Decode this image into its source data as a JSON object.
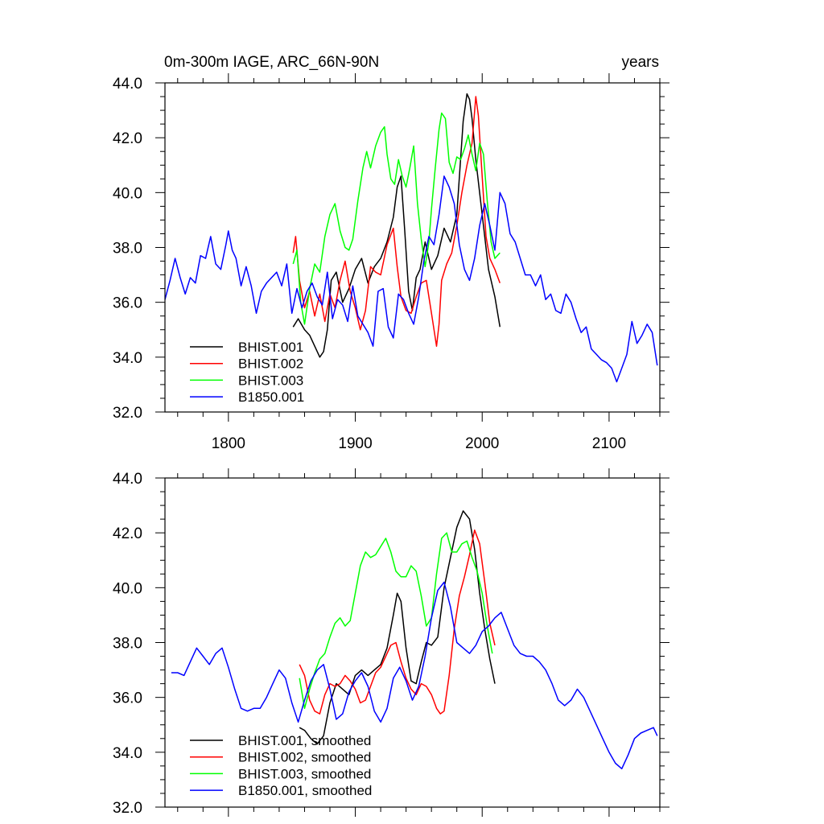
{
  "figure": {
    "title_left": "0m-300m IAGE, ARC_66N-90N",
    "title_right": "years"
  },
  "chart_data": [
    {
      "type": "line",
      "panel": "raw",
      "xlim": [
        1750,
        2140
      ],
      "ylim": [
        32.0,
        44.0
      ],
      "xticks": [
        1800,
        1900,
        2000,
        2100
      ],
      "xticklabels": [
        "1800",
        "1900",
        "2000",
        "2100"
      ],
      "yticks": [
        32,
        34,
        36,
        38,
        40,
        42,
        44
      ],
      "yticklabels": [
        "32.0",
        "34.0",
        "36.0",
        "38.0",
        "40.0",
        "42.0",
        "44.0"
      ],
      "grid": false,
      "legend_position": "bottom-left",
      "series": [
        {
          "name": "BHIST.001",
          "color": "#000000",
          "x": [
            1851,
            1855,
            1860,
            1864,
            1868,
            1872,
            1875,
            1878,
            1881,
            1885,
            1890,
            1895,
            1900,
            1905,
            1910,
            1915,
            1920,
            1925,
            1930,
            1933,
            1936,
            1939,
            1942,
            1945,
            1948,
            1951,
            1955,
            1960,
            1965,
            1970,
            1975,
            1980,
            1985,
            1988,
            1990,
            1992,
            1995,
            2000,
            2005,
            2010,
            2014
          ],
          "y": [
            35.1,
            35.4,
            35.0,
            34.8,
            34.4,
            34.0,
            34.2,
            35.0,
            36.8,
            37.1,
            36.0,
            36.5,
            37.2,
            37.6,
            36.7,
            37.3,
            37.6,
            38.2,
            39.1,
            40.2,
            40.6,
            38.6,
            36.4,
            35.7,
            36.9,
            37.2,
            38.2,
            37.2,
            37.7,
            38.7,
            38.2,
            39.2,
            42.6,
            43.6,
            43.4,
            42.7,
            41.2,
            39.2,
            37.2,
            36.2,
            35.1
          ]
        },
        {
          "name": "BHIST.002",
          "color": "#ff0000",
          "x": [
            1851,
            1853,
            1856,
            1860,
            1864,
            1868,
            1872,
            1876,
            1880,
            1884,
            1888,
            1892,
            1896,
            1900,
            1904,
            1908,
            1912,
            1916,
            1920,
            1925,
            1930,
            1933,
            1936,
            1940,
            1944,
            1948,
            1952,
            1956,
            1960,
            1964,
            1966,
            1968,
            1972,
            1976,
            1980,
            1984,
            1988,
            1992,
            1995,
            1997,
            2000,
            2003,
            2006,
            2010,
            2014
          ],
          "y": [
            37.8,
            38.4,
            36.8,
            35.8,
            36.4,
            35.5,
            36.3,
            35.3,
            36.3,
            35.8,
            36.8,
            37.5,
            36.4,
            35.8,
            35.0,
            35.7,
            37.3,
            37.1,
            37.0,
            38.1,
            38.7,
            37.3,
            36.2,
            35.7,
            35.6,
            36.2,
            36.7,
            36.8,
            35.6,
            34.4,
            35.2,
            36.8,
            37.4,
            37.8,
            38.8,
            40.0,
            41.0,
            41.8,
            43.5,
            42.8,
            40.6,
            38.4,
            37.6,
            37.2,
            36.7
          ]
        },
        {
          "name": "BHIST.003",
          "color": "#00ff00",
          "x": [
            1851,
            1854,
            1857,
            1860,
            1864,
            1868,
            1872,
            1876,
            1880,
            1884,
            1888,
            1892,
            1895,
            1898,
            1902,
            1906,
            1909,
            1912,
            1916,
            1920,
            1923,
            1925,
            1928,
            1931,
            1934,
            1937,
            1940,
            1943,
            1946,
            1949,
            1952,
            1955,
            1958,
            1960,
            1963,
            1966,
            1968,
            1971,
            1974,
            1977,
            1980,
            1983,
            1986,
            1989,
            1992,
            1995,
            1998,
            2001,
            2004,
            2007,
            2010,
            2014
          ],
          "y": [
            37.4,
            37.9,
            36.0,
            35.2,
            36.5,
            37.4,
            37.1,
            38.4,
            39.2,
            39.6,
            38.6,
            38.0,
            37.9,
            38.3,
            39.7,
            40.9,
            41.5,
            40.9,
            41.7,
            42.2,
            42.4,
            41.4,
            40.5,
            40.3,
            41.2,
            40.6,
            40.2,
            40.9,
            41.7,
            39.6,
            38.3,
            37.3,
            38.2,
            39.4,
            40.9,
            42.3,
            42.9,
            42.7,
            41.1,
            40.7,
            41.3,
            41.2,
            41.6,
            42.1,
            41.4,
            40.8,
            41.8,
            41.4,
            39.7,
            38.2,
            37.6,
            37.8
          ]
        },
        {
          "name": "B1850.001",
          "color": "#0000ff",
          "x": [
            1750,
            1754,
            1758,
            1762,
            1766,
            1770,
            1774,
            1778,
            1782,
            1786,
            1790,
            1794,
            1798,
            1800,
            1803,
            1806,
            1810,
            1814,
            1818,
            1822,
            1826,
            1830,
            1834,
            1838,
            1842,
            1846,
            1850,
            1854,
            1858,
            1862,
            1866,
            1870,
            1874,
            1878,
            1882,
            1886,
            1890,
            1894,
            1898,
            1902,
            1906,
            1910,
            1914,
            1918,
            1922,
            1926,
            1930,
            1934,
            1938,
            1942,
            1946,
            1950,
            1954,
            1958,
            1962,
            1966,
            1970,
            1974,
            1978,
            1982,
            1986,
            1990,
            1994,
            1998,
            2002,
            2006,
            2010,
            2014,
            2018,
            2022,
            2026,
            2030,
            2034,
            2038,
            2042,
            2046,
            2050,
            2054,
            2058,
            2062,
            2066,
            2070,
            2074,
            2078,
            2082,
            2086,
            2090,
            2094,
            2098,
            2102,
            2106,
            2110,
            2114,
            2118,
            2122,
            2126,
            2130,
            2134,
            2138
          ],
          "y": [
            36.1,
            36.8,
            37.6,
            36.9,
            36.3,
            36.9,
            36.7,
            37.7,
            37.6,
            38.4,
            37.4,
            37.2,
            38.1,
            38.6,
            37.9,
            37.6,
            36.6,
            37.3,
            36.6,
            35.6,
            36.4,
            36.7,
            36.9,
            37.1,
            36.6,
            37.4,
            35.6,
            36.5,
            35.8,
            36.4,
            36.7,
            36.2,
            35.9,
            37.1,
            35.4,
            36.1,
            35.9,
            35.3,
            36.6,
            35.5,
            35.2,
            34.9,
            34.4,
            36.4,
            36.5,
            35.1,
            34.7,
            36.3,
            36.1,
            35.6,
            35.2,
            36.2,
            37.5,
            38.4,
            38.1,
            39.2,
            40.6,
            40.2,
            39.6,
            38.1,
            37.2,
            36.8,
            37.6,
            38.8,
            39.6,
            38.8,
            37.9,
            40.0,
            39.6,
            38.5,
            38.2,
            37.6,
            37.0,
            37.0,
            36.6,
            37.0,
            36.1,
            36.3,
            35.7,
            35.6,
            36.3,
            36.0,
            35.4,
            34.9,
            35.1,
            34.3,
            34.1,
            33.9,
            33.8,
            33.6,
            33.1,
            33.6,
            34.1,
            35.3,
            34.5,
            34.8,
            35.2,
            34.9,
            33.7
          ]
        }
      ]
    },
    {
      "type": "line",
      "panel": "smoothed",
      "xlim": [
        1750,
        2140
      ],
      "ylim": [
        32.0,
        44.0
      ],
      "xticks": [
        1800,
        1900,
        2000,
        2100
      ],
      "yticks": [
        32,
        34,
        36,
        38,
        40,
        42,
        44
      ],
      "yticklabels": [
        "32.0",
        "34.0",
        "36.0",
        "38.0",
        "40.0",
        "42.0",
        "44.0"
      ],
      "grid": false,
      "legend_position": "bottom-left",
      "series": [
        {
          "name": "BHIST.001, smoothed",
          "color": "#000000",
          "x": [
            1856,
            1860,
            1865,
            1870,
            1875,
            1880,
            1885,
            1890,
            1895,
            1900,
            1905,
            1910,
            1915,
            1920,
            1925,
            1930,
            1933,
            1936,
            1940,
            1944,
            1948,
            1952,
            1956,
            1960,
            1965,
            1970,
            1975,
            1980,
            1985,
            1990,
            1994,
            1998,
            2002,
            2006,
            2010
          ],
          "y": [
            34.9,
            34.8,
            34.5,
            34.3,
            34.6,
            35.8,
            36.5,
            36.3,
            36.1,
            36.8,
            37.0,
            36.8,
            37.0,
            37.2,
            37.8,
            39.0,
            39.8,
            39.5,
            37.8,
            36.6,
            36.5,
            37.3,
            38.0,
            37.9,
            38.2,
            40.0,
            41.1,
            42.2,
            42.8,
            42.5,
            41.4,
            39.8,
            38.5,
            37.4,
            36.5
          ]
        },
        {
          "name": "BHIST.002, smoothed",
          "color": "#ff0000",
          "x": [
            1856,
            1860,
            1864,
            1868,
            1872,
            1876,
            1880,
            1884,
            1888,
            1892,
            1896,
            1900,
            1904,
            1908,
            1912,
            1916,
            1920,
            1924,
            1928,
            1932,
            1936,
            1940,
            1944,
            1948,
            1952,
            1956,
            1960,
            1964,
            1967,
            1970,
            1974,
            1978,
            1982,
            1986,
            1990,
            1994,
            1998,
            2002,
            2006,
            2010
          ],
          "y": [
            37.2,
            36.8,
            35.9,
            35.5,
            35.4,
            36.1,
            36.5,
            36.4,
            36.5,
            36.8,
            36.6,
            36.3,
            35.8,
            35.9,
            36.4,
            36.9,
            37.1,
            37.5,
            37.9,
            38.0,
            37.3,
            36.7,
            36.3,
            36.1,
            36.5,
            36.4,
            36.1,
            35.6,
            35.4,
            35.5,
            36.8,
            38.5,
            39.7,
            40.4,
            41.2,
            42.1,
            41.6,
            40.2,
            38.7,
            37.9
          ]
        },
        {
          "name": "BHIST.003, smoothed",
          "color": "#00ff00",
          "x": [
            1856,
            1860,
            1864,
            1868,
            1872,
            1876,
            1880,
            1884,
            1888,
            1892,
            1896,
            1900,
            1904,
            1908,
            1912,
            1916,
            1920,
            1924,
            1928,
            1932,
            1936,
            1940,
            1944,
            1948,
            1952,
            1956,
            1960,
            1964,
            1968,
            1972,
            1976,
            1980,
            1984,
            1988,
            1992,
            1996,
            2000,
            2004,
            2008
          ],
          "y": [
            36.7,
            35.6,
            36.3,
            36.9,
            37.4,
            37.6,
            38.2,
            38.7,
            38.9,
            38.6,
            38.8,
            39.8,
            40.8,
            41.3,
            41.1,
            41.2,
            41.5,
            41.8,
            41.3,
            40.6,
            40.4,
            40.4,
            40.8,
            40.6,
            39.7,
            38.6,
            38.9,
            40.5,
            41.8,
            42.0,
            41.3,
            41.3,
            41.6,
            41.7,
            41.1,
            40.6,
            39.8,
            38.6,
            37.6
          ]
        },
        {
          "name": "B1850.001, smoothed",
          "color": "#0000ff",
          "x": [
            1755,
            1760,
            1765,
            1770,
            1775,
            1780,
            1785,
            1790,
            1795,
            1800,
            1805,
            1810,
            1815,
            1820,
            1825,
            1830,
            1835,
            1840,
            1845,
            1850,
            1855,
            1860,
            1865,
            1870,
            1875,
            1880,
            1885,
            1890,
            1895,
            1900,
            1905,
            1910,
            1915,
            1920,
            1925,
            1930,
            1935,
            1940,
            1945,
            1950,
            1955,
            1960,
            1965,
            1970,
            1975,
            1980,
            1985,
            1990,
            1995,
            2000,
            2005,
            2010,
            2015,
            2020,
            2025,
            2030,
            2035,
            2040,
            2045,
            2050,
            2055,
            2060,
            2065,
            2070,
            2075,
            2080,
            2085,
            2090,
            2095,
            2100,
            2105,
            2110,
            2115,
            2120,
            2125,
            2130,
            2135,
            2138
          ],
          "y": [
            36.9,
            36.9,
            36.8,
            37.3,
            37.8,
            37.5,
            37.2,
            37.6,
            37.8,
            37.1,
            36.3,
            35.6,
            35.5,
            35.6,
            35.6,
            36.0,
            36.5,
            37.0,
            36.7,
            35.8,
            35.1,
            35.9,
            36.6,
            37.0,
            37.2,
            36.3,
            35.2,
            35.4,
            36.2,
            36.6,
            36.9,
            36.4,
            35.5,
            35.1,
            35.6,
            36.7,
            37.1,
            36.6,
            35.9,
            36.4,
            37.5,
            38.9,
            39.9,
            40.2,
            39.3,
            38.0,
            37.8,
            37.6,
            37.9,
            38.4,
            38.6,
            38.9,
            39.1,
            38.5,
            37.9,
            37.6,
            37.5,
            37.5,
            37.3,
            37.0,
            36.5,
            35.9,
            35.7,
            35.9,
            36.3,
            36.0,
            35.5,
            35.0,
            34.5,
            34.0,
            33.6,
            33.4,
            33.9,
            34.5,
            34.7,
            34.8,
            34.9,
            34.6
          ]
        }
      ]
    }
  ]
}
